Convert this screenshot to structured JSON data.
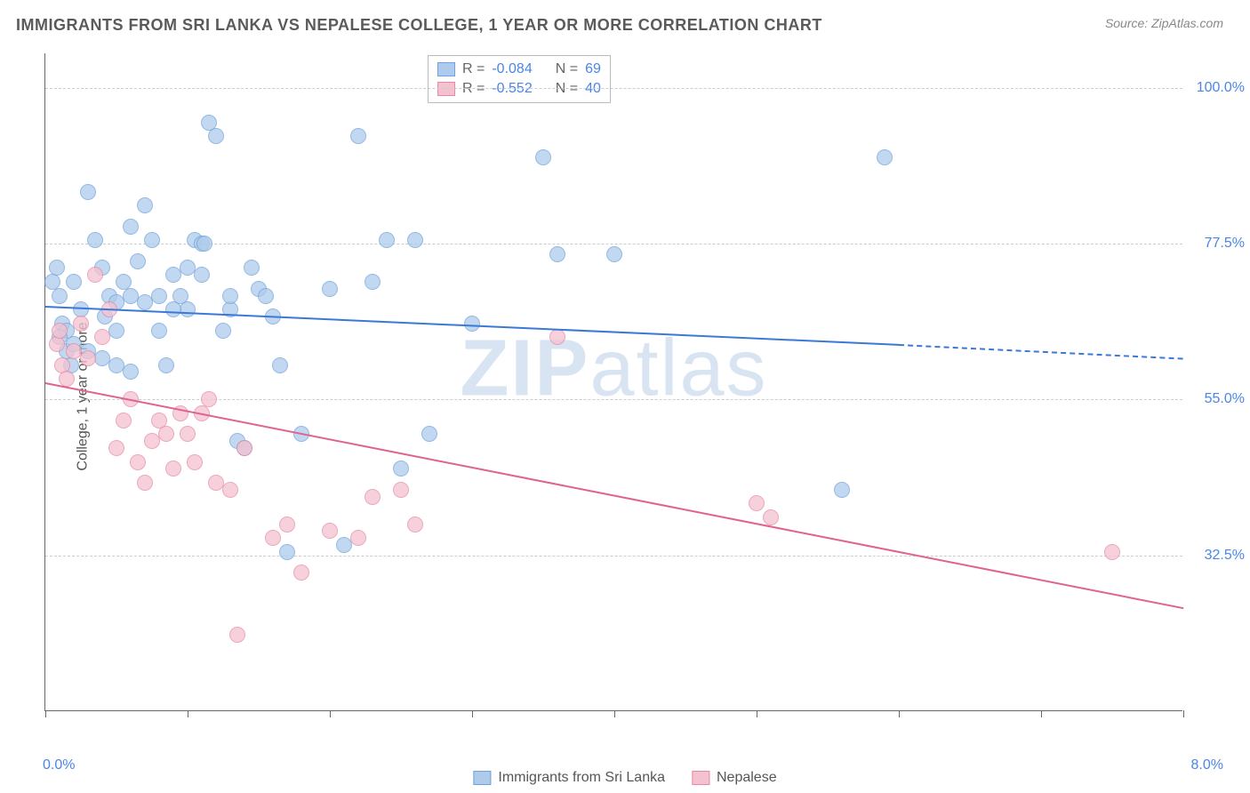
{
  "title": "IMMIGRANTS FROM SRI LANKA VS NEPALESE COLLEGE, 1 YEAR OR MORE CORRELATION CHART",
  "source": "Source: ZipAtlas.com",
  "ylabel": "College, 1 year or more",
  "watermark_bold": "ZIP",
  "watermark_light": "atlas",
  "chart": {
    "type": "scatter",
    "xlim": [
      0,
      8
    ],
    "ylim": [
      10,
      105
    ],
    "x_tick_positions": [
      0,
      1,
      2,
      3,
      4,
      5,
      6,
      7,
      8
    ],
    "x_start_label": "0.0%",
    "x_end_label": "8.0%",
    "y_ticks": [
      {
        "value": 32.5,
        "label": "32.5%"
      },
      {
        "value": 55.0,
        "label": "55.0%"
      },
      {
        "value": 77.5,
        "label": "77.5%"
      },
      {
        "value": 100.0,
        "label": "100.0%"
      }
    ],
    "background_color": "#ffffff",
    "grid_color": "#cccccc",
    "axis_color": "#666666",
    "tick_label_color": "#4a86e8",
    "marker_radius": 9,
    "series": [
      {
        "name": "Immigrants from Sri Lanka",
        "fill_color": "#aecbeb",
        "stroke_color": "#6fa3dd",
        "stats": {
          "R": "-0.084",
          "N": "69"
        },
        "trend": {
          "x1": 0.0,
          "y1": 68.5,
          "x2": 6.0,
          "y2": 63.0,
          "line_color": "#3b78d8",
          "dash_to_x": 8.0,
          "dash_to_y": 61.0
        },
        "points": [
          [
            0.05,
            72
          ],
          [
            0.08,
            74
          ],
          [
            0.1,
            70
          ],
          [
            0.12,
            66
          ],
          [
            0.15,
            62
          ],
          [
            0.15,
            65
          ],
          [
            0.18,
            60
          ],
          [
            0.2,
            72
          ],
          [
            0.25,
            68
          ],
          [
            0.3,
            85
          ],
          [
            0.35,
            78
          ],
          [
            0.4,
            74
          ],
          [
            0.42,
            67
          ],
          [
            0.45,
            70
          ],
          [
            0.5,
            65
          ],
          [
            0.5,
            60
          ],
          [
            0.55,
            72
          ],
          [
            0.6,
            80
          ],
          [
            0.65,
            75
          ],
          [
            0.7,
            83
          ],
          [
            0.75,
            78
          ],
          [
            0.8,
            65
          ],
          [
            0.85,
            60
          ],
          [
            0.9,
            73
          ],
          [
            0.95,
            70
          ],
          [
            1.0,
            68
          ],
          [
            1.05,
            78
          ],
          [
            1.1,
            77.5
          ],
          [
            1.12,
            77.5
          ],
          [
            1.15,
            95
          ],
          [
            1.2,
            93
          ],
          [
            1.25,
            65
          ],
          [
            1.3,
            68
          ],
          [
            1.35,
            49
          ],
          [
            1.4,
            48
          ],
          [
            1.45,
            74
          ],
          [
            1.5,
            71
          ],
          [
            1.55,
            70
          ],
          [
            1.6,
            67
          ],
          [
            1.65,
            60
          ],
          [
            1.7,
            33
          ],
          [
            1.8,
            50
          ],
          [
            2.0,
            71
          ],
          [
            2.1,
            34
          ],
          [
            2.2,
            93
          ],
          [
            2.3,
            72
          ],
          [
            2.4,
            78
          ],
          [
            2.5,
            45
          ],
          [
            2.6,
            78
          ],
          [
            2.7,
            50
          ],
          [
            3.0,
            66
          ],
          [
            3.5,
            90
          ],
          [
            3.6,
            76
          ],
          [
            4.0,
            76
          ],
          [
            5.6,
            42
          ],
          [
            5.9,
            90
          ],
          [
            0.1,
            64
          ],
          [
            0.2,
            63
          ],
          [
            0.3,
            62
          ],
          [
            0.4,
            61
          ],
          [
            0.5,
            69
          ],
          [
            0.6,
            70
          ],
          [
            0.7,
            69
          ],
          [
            0.8,
            70
          ],
          [
            0.9,
            68
          ],
          [
            1.0,
            74
          ],
          [
            1.1,
            73
          ],
          [
            1.3,
            70
          ],
          [
            0.6,
            59
          ]
        ]
      },
      {
        "name": "Nepalese",
        "fill_color": "#f4c2cf",
        "stroke_color": "#e88aa5",
        "stats": {
          "R": "-0.552",
          "N": "40"
        },
        "trend": {
          "x1": 0.0,
          "y1": 57.5,
          "x2": 8.0,
          "y2": 25.0,
          "line_color": "#e06290"
        },
        "points": [
          [
            0.08,
            63
          ],
          [
            0.1,
            65
          ],
          [
            0.12,
            60
          ],
          [
            0.15,
            58
          ],
          [
            0.2,
            62
          ],
          [
            0.25,
            66
          ],
          [
            0.3,
            61
          ],
          [
            0.35,
            73
          ],
          [
            0.4,
            64
          ],
          [
            0.45,
            68
          ],
          [
            0.5,
            48
          ],
          [
            0.55,
            52
          ],
          [
            0.6,
            55
          ],
          [
            0.65,
            46
          ],
          [
            0.7,
            43
          ],
          [
            0.75,
            49
          ],
          [
            0.8,
            52
          ],
          [
            0.85,
            50
          ],
          [
            0.9,
            45
          ],
          [
            0.95,
            53
          ],
          [
            1.0,
            50
          ],
          [
            1.05,
            46
          ],
          [
            1.1,
            53
          ],
          [
            1.15,
            55
          ],
          [
            1.2,
            43
          ],
          [
            1.3,
            42
          ],
          [
            1.35,
            21
          ],
          [
            1.4,
            48
          ],
          [
            1.6,
            35
          ],
          [
            1.7,
            37
          ],
          [
            1.8,
            30
          ],
          [
            2.0,
            36
          ],
          [
            2.2,
            35
          ],
          [
            2.3,
            41
          ],
          [
            2.5,
            42
          ],
          [
            2.6,
            37
          ],
          [
            3.6,
            64
          ],
          [
            5.0,
            40
          ],
          [
            5.1,
            38
          ],
          [
            7.5,
            33
          ]
        ]
      }
    ],
    "bottom_legend": [
      {
        "label": "Immigrants from Sri Lanka",
        "fill": "#aecbeb",
        "stroke": "#6fa3dd"
      },
      {
        "label": "Nepalese",
        "fill": "#f4c2cf",
        "stroke": "#e88aa5"
      }
    ]
  }
}
